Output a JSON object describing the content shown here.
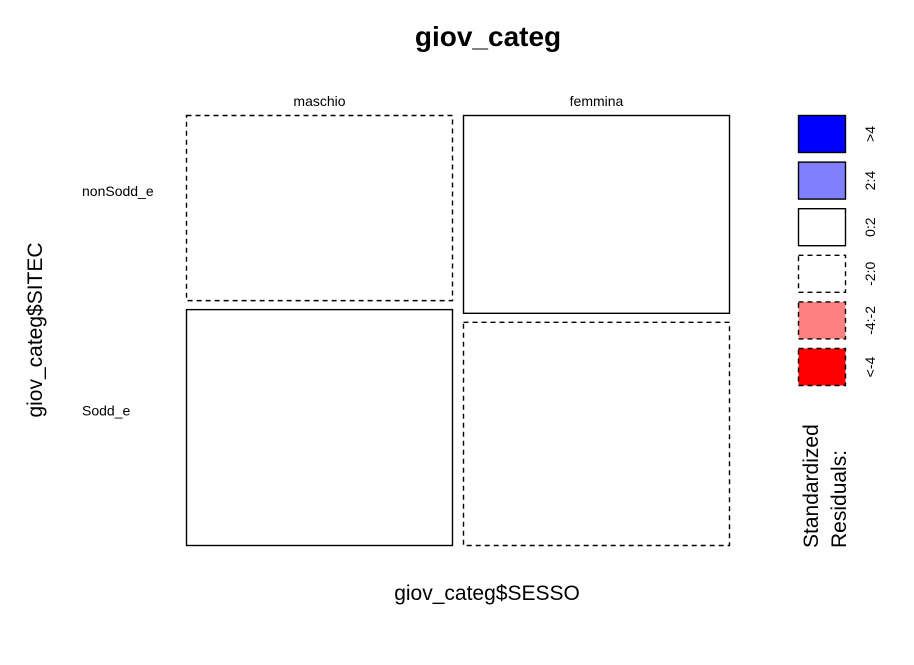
{
  "chart_data": {
    "type": "mosaic",
    "title": "giov_categ",
    "xlabel": "giov_categ$SESSO",
    "ylabel": "giov_categ$SITEC",
    "x_categories": [
      "maschio",
      "femmina"
    ],
    "y_categories": [
      "nonSodd_e",
      "Sodd_e"
    ],
    "x_proportions": [
      0.5,
      0.5
    ],
    "conditional_y_proportions": {
      "maschio": [
        0.44,
        0.56
      ],
      "femmina": [
        0.47,
        0.53
      ]
    },
    "residual_bins": {
      "maschio": [
        "-2:0",
        "0:2"
      ],
      "femmina": [
        "0:2",
        "-2:0"
      ]
    },
    "legend": {
      "title_line1": "Standardized",
      "title_line2": "Residuals:",
      "placement": "right",
      "entries": [
        {
          "label": ">4",
          "fill": "#0000ff",
          "dashed": false
        },
        {
          "label": "2:4",
          "fill": "#8080ff",
          "dashed": false
        },
        {
          "label": "0:2",
          "fill": "#ffffff",
          "dashed": false
        },
        {
          "label": "-2:0",
          "fill": "#ffffff",
          "dashed": true
        },
        {
          "label": "-4:-2",
          "fill": "#ff8080",
          "dashed": true
        },
        {
          "label": "<-4",
          "fill": "#ff0000",
          "dashed": true
        }
      ]
    }
  }
}
